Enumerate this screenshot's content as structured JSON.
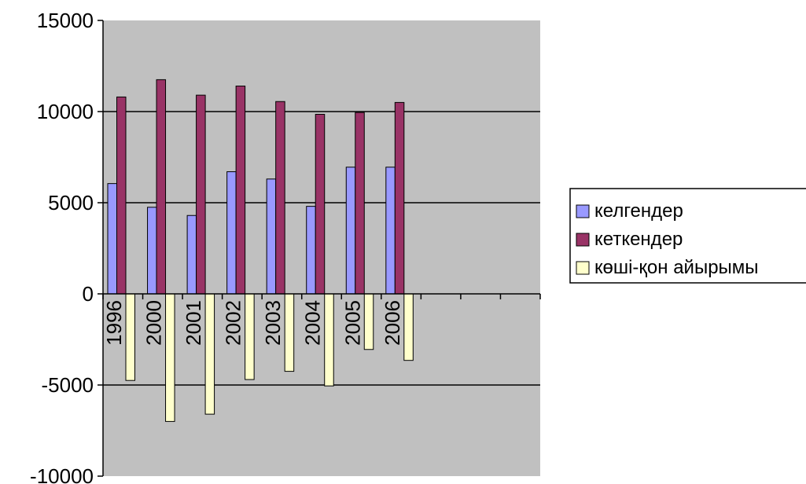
{
  "chart_data": {
    "type": "bar",
    "title": "",
    "xlabel": "",
    "ylabel": "",
    "categories": [
      "1996",
      "2000",
      "2001",
      "2002",
      "2003",
      "2004",
      "2005",
      "2006",
      "",
      "",
      ""
    ],
    "ylim": [
      -10000,
      15000
    ],
    "yticks": [
      15000,
      10000,
      5000,
      0,
      -5000,
      -10000
    ],
    "grid": true,
    "legend_position": "right",
    "plot_background": "#c0c0c0",
    "series": [
      {
        "name": "келгендер",
        "color": "#9999ff",
        "values": [
          6050,
          4750,
          4300,
          6700,
          6300,
          4800,
          6950,
          6950,
          null,
          null,
          null
        ]
      },
      {
        "name": "кеткендер",
        "color": "#993366",
        "values": [
          10800,
          11750,
          10900,
          11400,
          10550,
          9850,
          9950,
          10500,
          null,
          null,
          null
        ]
      },
      {
        "name": "көші-қон айырымы",
        "color": "#ffffcc",
        "values": [
          -4750,
          -7000,
          -6600,
          -4700,
          -4250,
          -5050,
          -3050,
          -3650,
          null,
          null,
          null
        ]
      }
    ]
  }
}
